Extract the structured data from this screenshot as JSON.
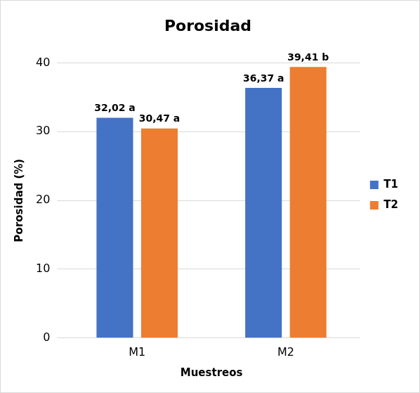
{
  "chart_data": {
    "type": "bar",
    "title": "Porosidad",
    "x_label": "Muestreos",
    "y_label": "Porosidad (%)",
    "categories": [
      "M1",
      "M2"
    ],
    "series": [
      {
        "name": "T1",
        "color": "#4472c4",
        "values": [
          32.02,
          36.37
        ],
        "value_labels": [
          "32,02 a",
          "36,37 a"
        ]
      },
      {
        "name": "T2",
        "color": "#ed7d31",
        "values": [
          30.47,
          39.41
        ],
        "value_labels": [
          "30,47 a",
          "39,41 b"
        ]
      }
    ],
    "ylim": [
      0,
      40
    ],
    "yticks": [
      0,
      10,
      20,
      30,
      40
    ],
    "grid": true,
    "legend": "right",
    "data_labels": true
  }
}
